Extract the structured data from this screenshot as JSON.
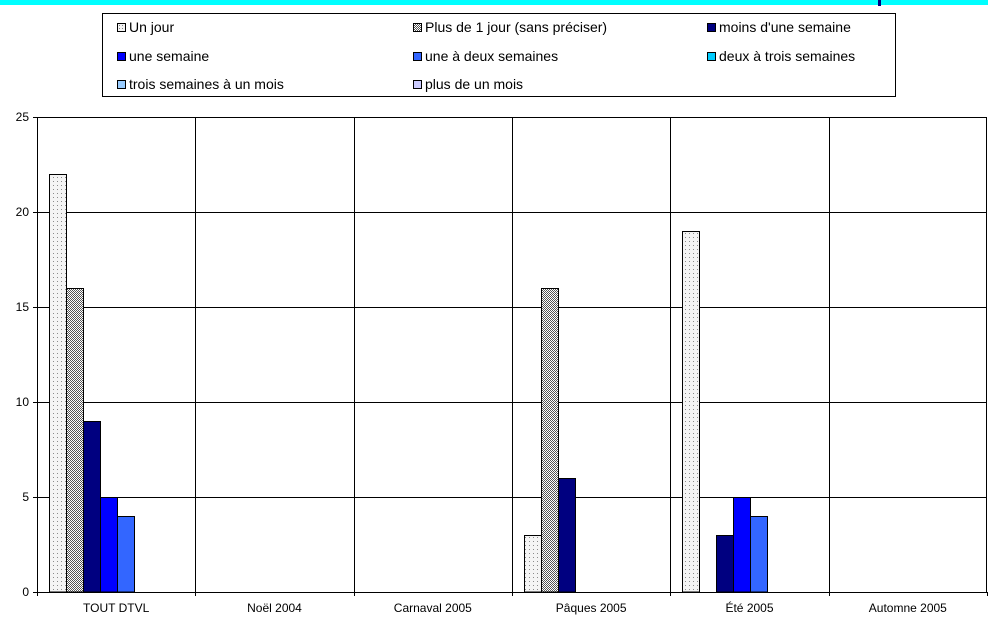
{
  "chart_data": {
    "type": "bar",
    "title": "",
    "xlabel": "",
    "ylabel": "",
    "ylim": [
      0,
      25
    ],
    "yticks": [
      0,
      5,
      10,
      15,
      20,
      25
    ],
    "grid": true,
    "legend_position": "top",
    "categories": [
      "TOUT DTVL",
      "Noël 2004",
      "Carnaval 2005",
      "Pâques 2005",
      "Été 2005",
      "Automne 2005"
    ],
    "series": [
      {
        "name": "Un jour",
        "color": "#f2f2f2",
        "pattern": "dots",
        "values": [
          22,
          0,
          0,
          3,
          19,
          0
        ]
      },
      {
        "name": "Plus de 1 jour (sans préciser)",
        "color": "#808080",
        "pattern": "checker",
        "values": [
          16,
          0,
          0,
          16,
          0,
          0
        ]
      },
      {
        "name": "moins d'une semaine",
        "color": "#000080",
        "pattern": "solid",
        "values": [
          9,
          0,
          0,
          6,
          3,
          0
        ]
      },
      {
        "name": "une semaine",
        "color": "#0000ff",
        "pattern": "solid",
        "values": [
          5,
          0,
          0,
          0,
          5,
          0
        ]
      },
      {
        "name": "une à deux semaines",
        "color": "#3366ff",
        "pattern": "solid",
        "values": [
          4,
          0,
          0,
          0,
          4,
          0
        ]
      },
      {
        "name": "deux à trois semaines",
        "color": "#00ccff",
        "pattern": "solid",
        "values": [
          0,
          0,
          0,
          0,
          0,
          0
        ]
      },
      {
        "name": "trois semaines à un mois",
        "color": "#99ccff",
        "pattern": "solid",
        "values": [
          0,
          0,
          0,
          0,
          0,
          0
        ]
      },
      {
        "name": "plus de un mois",
        "color": "#ccccff",
        "pattern": "solid",
        "values": [
          0,
          0,
          0,
          0,
          0,
          0
        ]
      }
    ]
  }
}
